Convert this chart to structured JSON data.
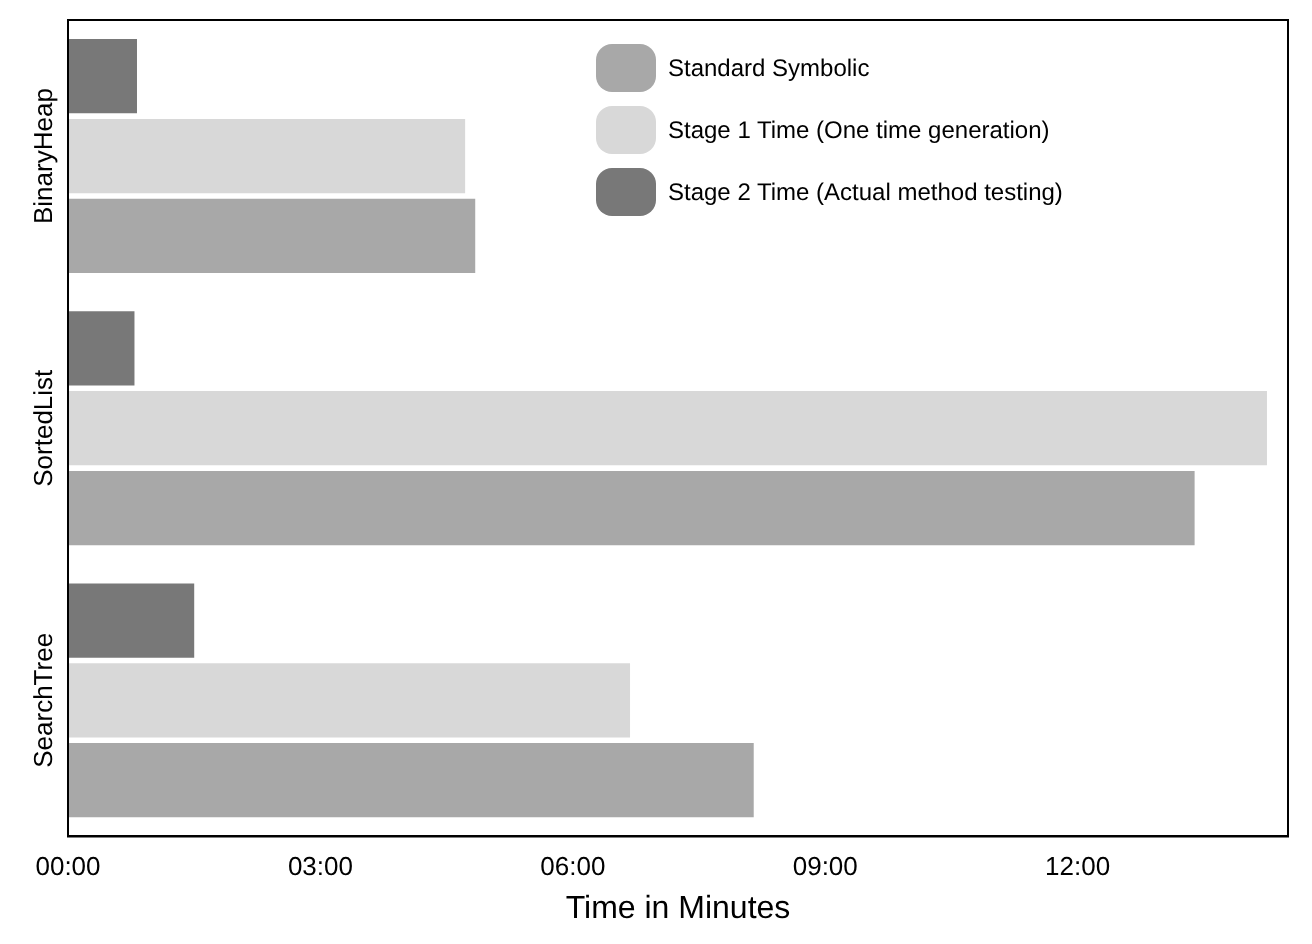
{
  "chart_data": {
    "type": "bar",
    "orientation": "horizontal",
    "xlabel": "Time in Minutes",
    "categories": [
      "BinaryHeap",
      "SortedList",
      "SearchTree"
    ],
    "series": [
      {
        "name": "Standard Symbolic",
        "color": "#a8a8a8",
        "values": [
          4.84,
          13.39,
          8.15
        ]
      },
      {
        "name": "Stage 1 Time (One time generation)",
        "color": "#d8d8d8",
        "values": [
          4.72,
          14.25,
          6.68
        ]
      },
      {
        "name": "Stage 2 Time (Actual method testing)",
        "color": "#787878",
        "values": [
          0.82,
          0.79,
          1.5
        ]
      }
    ],
    "xlim": [
      0,
      14.5
    ],
    "xticks": [
      {
        "value": 0,
        "label": "00:00"
      },
      {
        "value": 3,
        "label": "03:00"
      },
      {
        "value": 6,
        "label": "06:00"
      },
      {
        "value": 9,
        "label": "09:00"
      },
      {
        "value": 12,
        "label": "12:00"
      }
    ],
    "grid": false,
    "legend": "top right"
  }
}
